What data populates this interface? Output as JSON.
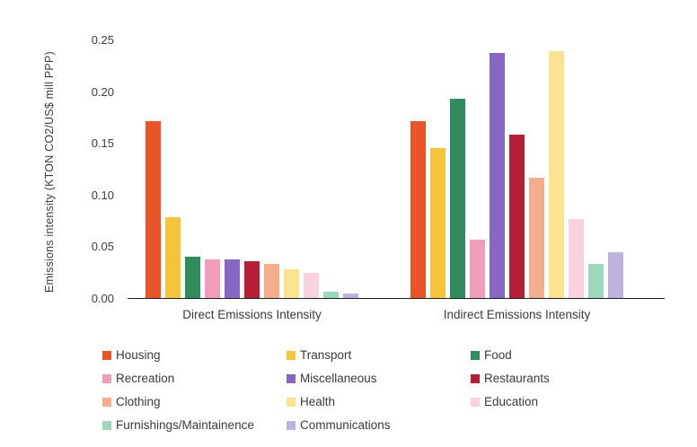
{
  "chart_data": {
    "type": "bar",
    "title": "",
    "ylabel": "Emissions intensity (KTON CO2/US$ mill PPP)",
    "xlabel": "",
    "ylim": [
      0,
      0.25
    ],
    "ytick_labels": [
      "0.00",
      "0.05",
      "0.10",
      "0.15",
      "0.20",
      "0.25"
    ],
    "grid": false,
    "legend_position": "bottom",
    "categories": [
      "Direct Emissions Intensity",
      "Indirect Emissions Intensity"
    ],
    "series": [
      {
        "name": "Housing",
        "color": "#EB5328",
        "values": [
          0.171,
          0.171
        ]
      },
      {
        "name": "Transport",
        "color": "#F4C53A",
        "values": [
          0.078,
          0.145
        ]
      },
      {
        "name": "Food",
        "color": "#2F8C5C",
        "values": [
          0.04,
          0.193
        ]
      },
      {
        "name": "Recreation",
        "color": "#F09CBB",
        "values": [
          0.037,
          0.056
        ]
      },
      {
        "name": "Miscellaneous",
        "color": "#8766C4",
        "values": [
          0.037,
          0.237
        ]
      },
      {
        "name": "Restaurants",
        "color": "#B52038",
        "values": [
          0.036,
          0.158
        ]
      },
      {
        "name": "Clothing",
        "color": "#F4AE8D",
        "values": [
          0.033,
          0.116
        ]
      },
      {
        "name": "Health",
        "color": "#FAE48F",
        "values": [
          0.028,
          0.239
        ]
      },
      {
        "name": "Education",
        "color": "#F8D2DE",
        "values": [
          0.024,
          0.076
        ]
      },
      {
        "name": "Furnishings/Maintainence",
        "color": "#9CD8BA",
        "values": [
          0.006,
          0.033
        ]
      },
      {
        "name": "Communications",
        "color": "#C0B2E0",
        "values": [
          0.004,
          0.044
        ]
      }
    ]
  }
}
